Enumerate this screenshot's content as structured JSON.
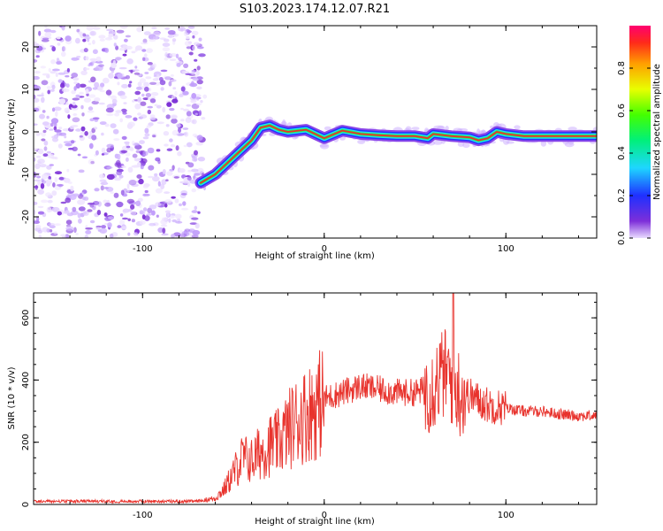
{
  "title": "S103.2023.174.12.07.R21",
  "colors": {
    "snr_line": "#e8332d",
    "spectrogram_noise": "#7b2fd6",
    "ridge_core": "#e8332d"
  },
  "chart_data": [
    {
      "type": "heatmap",
      "xlabel": "Height of straight line (km)",
      "ylabel": "Frequency (Hz)",
      "xlim": [
        -160,
        150
      ],
      "ylim": [
        -25,
        25
      ],
      "xticks": [
        -100,
        0,
        100
      ],
      "yticks": [
        -20,
        -10,
        0,
        10,
        20
      ],
      "colorbar": {
        "label": "Normalized spectral amplitude",
        "range": [
          0,
          1
        ],
        "ticks": [
          0.0,
          0.2,
          0.4,
          0.6,
          0.8
        ],
        "tick_labels": [
          "0.0",
          "0.2",
          "0.4",
          "0.6",
          "0.8"
        ],
        "colormap": "rainbow"
      },
      "noise_region": {
        "x_range": [
          -160,
          -68
        ],
        "note_amplitude": "low (0.1-0.3)"
      },
      "ridge": {
        "x": [
          -68,
          -60,
          -55,
          -50,
          -45,
          -40,
          -35,
          -30,
          -25,
          -20,
          -10,
          0,
          10,
          20,
          30,
          40,
          50,
          57,
          60,
          70,
          80,
          85,
          90,
          95,
          100,
          110,
          120,
          130,
          140,
          150
        ],
        "y": [
          -12,
          -10,
          -8,
          -6,
          -4,
          -2,
          1,
          1.5,
          0.5,
          0,
          0.5,
          -1.5,
          0.3,
          -0.5,
          -0.8,
          -1,
          -1,
          -1.5,
          -0.5,
          -1,
          -1.3,
          -2,
          -1.5,
          0,
          -0.5,
          -1,
          -1,
          -1,
          -1,
          -1
        ]
      }
    },
    {
      "type": "line",
      "xlabel": "Height of straight line (km)",
      "ylabel": "SNR (10 * v/v)",
      "xlim": [
        -160,
        150
      ],
      "ylim": [
        0,
        680
      ],
      "xticks": [
        -100,
        0,
        100
      ],
      "yticks": [
        0,
        200,
        400,
        600
      ],
      "series": [
        {
          "envelope_x": [
            -160,
            -70,
            -60,
            -55,
            -50,
            -45,
            -40,
            -35,
            -30,
            -25,
            -20,
            -15,
            -10,
            -5,
            0,
            10,
            20,
            30,
            40,
            50,
            55,
            60,
            62,
            65,
            68,
            70,
            72,
            75,
            80,
            90,
            100,
            110,
            120,
            130,
            140,
            150
          ],
          "envelope_y": [
            10,
            10,
            20,
            50,
            100,
            150,
            140,
            170,
            190,
            200,
            240,
            270,
            290,
            310,
            340,
            360,
            380,
            370,
            360,
            360,
            370,
            380,
            400,
            420,
            420,
            400,
            380,
            360,
            350,
            320,
            310,
            300,
            300,
            290,
            285,
            285
          ],
          "max_point": {
            "x": 71,
            "y": 680
          }
        }
      ]
    }
  ]
}
